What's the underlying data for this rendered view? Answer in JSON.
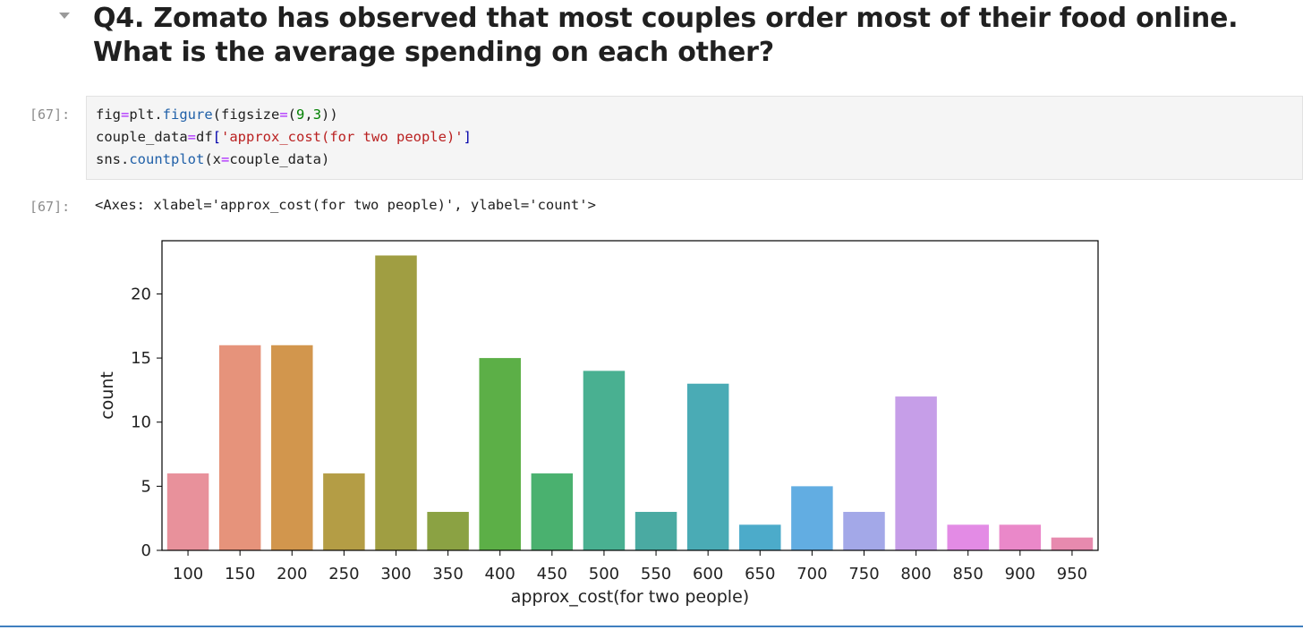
{
  "markdown": {
    "heading_line1": "Q4. Zomato has observed that most couples order most of their food online.",
    "heading_line2": "What is the average spending on each other?"
  },
  "input_cell": {
    "prompt": "[67]:",
    "lines": [
      [
        {
          "t": "fig",
          "c": ""
        },
        {
          "t": "=",
          "c": "k-op"
        },
        {
          "t": "plt.",
          "c": ""
        },
        {
          "t": "figure",
          "c": "k-fn"
        },
        {
          "t": "(figsize",
          "c": ""
        },
        {
          "t": "=",
          "c": "k-op"
        },
        {
          "t": "(",
          "c": ""
        },
        {
          "t": "9",
          "c": "k-num"
        },
        {
          "t": ",",
          "c": ""
        },
        {
          "t": "3",
          "c": "k-num"
        },
        {
          "t": "))",
          "c": ""
        }
      ],
      [
        {
          "t": "couple_data",
          "c": ""
        },
        {
          "t": "=",
          "c": "k-op"
        },
        {
          "t": "df",
          "c": ""
        },
        {
          "t": "[",
          "c": "k-br"
        },
        {
          "t": "'approx_cost(for two people)'",
          "c": "k-str"
        },
        {
          "t": "]",
          "c": "k-br"
        }
      ],
      [
        {
          "t": "sns.",
          "c": ""
        },
        {
          "t": "countplot",
          "c": "k-fn"
        },
        {
          "t": "(x",
          "c": ""
        },
        {
          "t": "=",
          "c": "k-op"
        },
        {
          "t": "couple_data)",
          "c": ""
        }
      ]
    ]
  },
  "output_cell": {
    "prompt": "[67]:",
    "text": "<Axes: xlabel='approx_cost(for two people)', ylabel='count'>"
  },
  "chart_data": {
    "type": "bar",
    "categories": [
      "100",
      "150",
      "200",
      "250",
      "300",
      "350",
      "400",
      "450",
      "500",
      "550",
      "600",
      "650",
      "700",
      "750",
      "800",
      "850",
      "900",
      "950"
    ],
    "values": [
      6,
      16,
      16,
      6,
      23,
      3,
      15,
      6,
      14,
      3,
      13,
      2,
      5,
      3,
      12,
      2,
      2,
      1
    ],
    "colors": [
      "#e8919b",
      "#e6937b",
      "#d2964d",
      "#b49d45",
      "#a09e42",
      "#8ba243",
      "#5caf47",
      "#4ab16f",
      "#49b091",
      "#4aaaa2",
      "#4aabb5",
      "#4cabca",
      "#62ade2",
      "#a3a8e8",
      "#c69ee8",
      "#e38be5",
      "#ea88c9",
      "#e78aae"
    ],
    "xlabel": "approx_cost(for two people)",
    "ylabel": "count",
    "ylim": [
      0,
      24.15
    ],
    "yticks": [
      0,
      5,
      10,
      15,
      20
    ],
    "grid": false
  }
}
